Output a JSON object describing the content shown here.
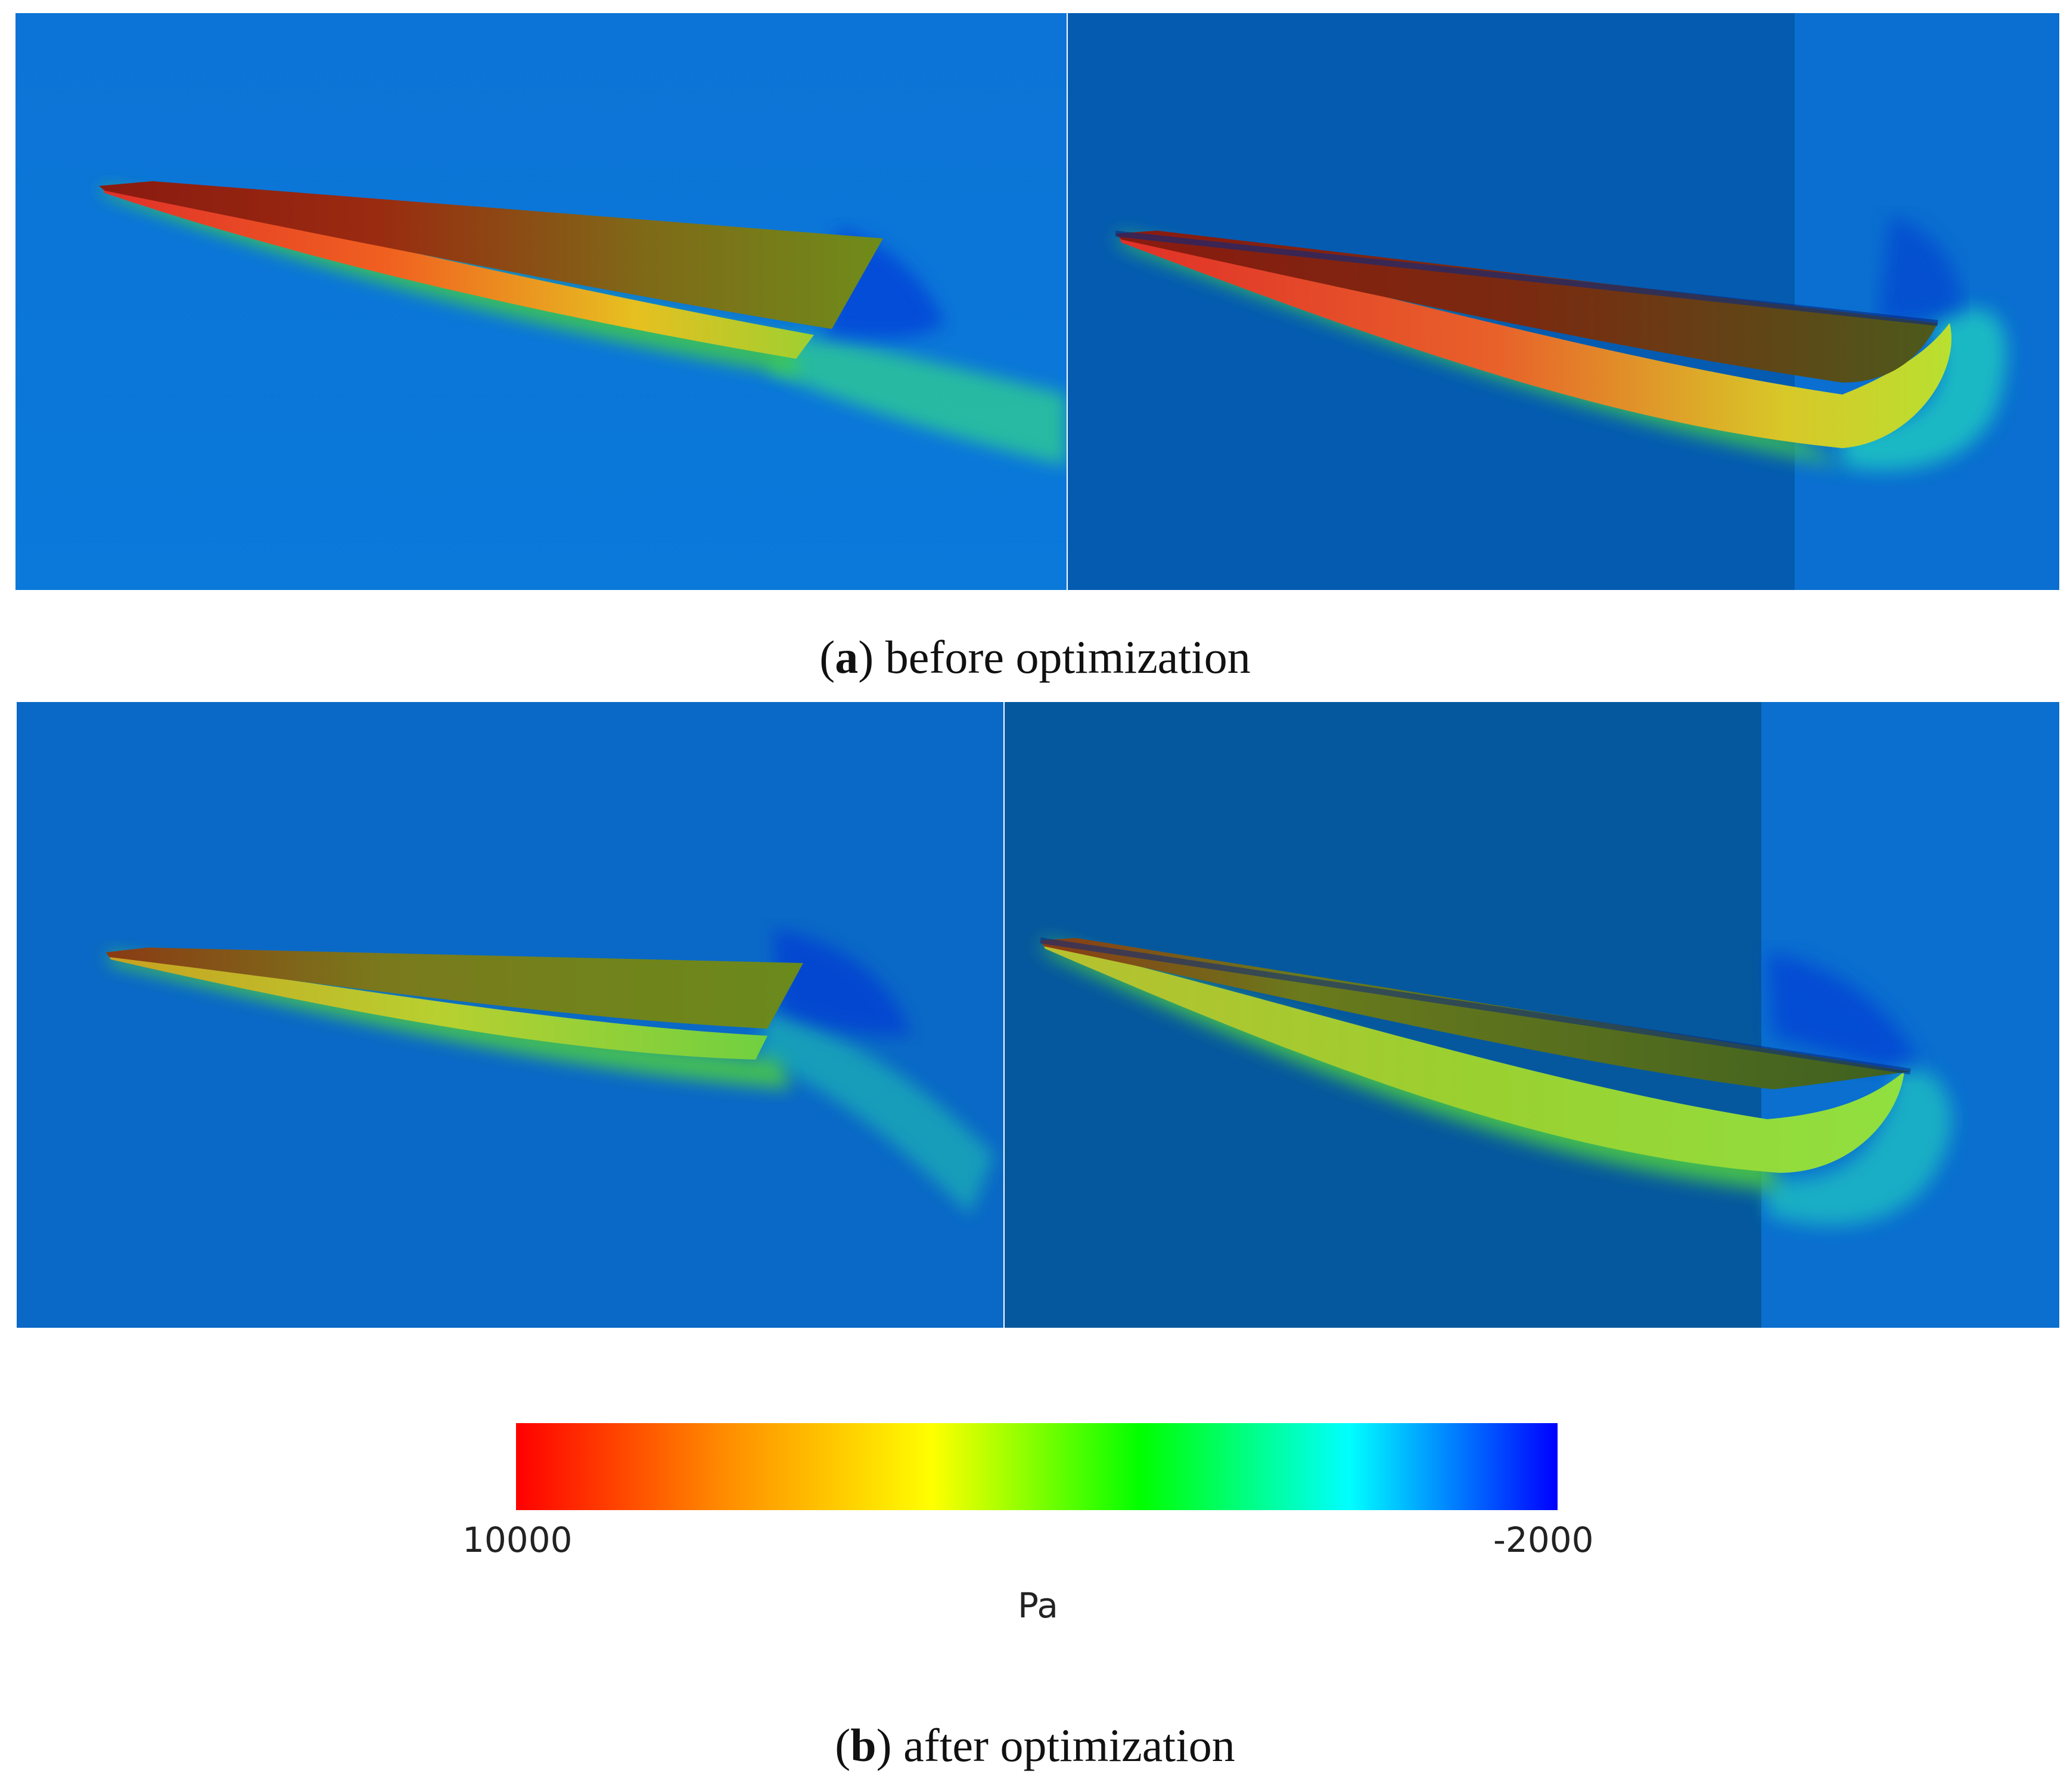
{
  "captions": {
    "a": {
      "letter": "a",
      "text": " before optimization"
    },
    "b": {
      "letter": "b",
      "text": " after optimization"
    }
  },
  "colorbar": {
    "max_label": "10000",
    "min_label": "-2000",
    "unit": "Pa",
    "stops": [
      "#ff0000",
      "#ff8c00",
      "#ffff00",
      "#00ff00",
      "#00ffff",
      "#0000ff"
    ]
  },
  "colors": {
    "background_light": "#0a78d8",
    "background_mid": "#0a69c6",
    "background_dark": "#055bb0"
  }
}
